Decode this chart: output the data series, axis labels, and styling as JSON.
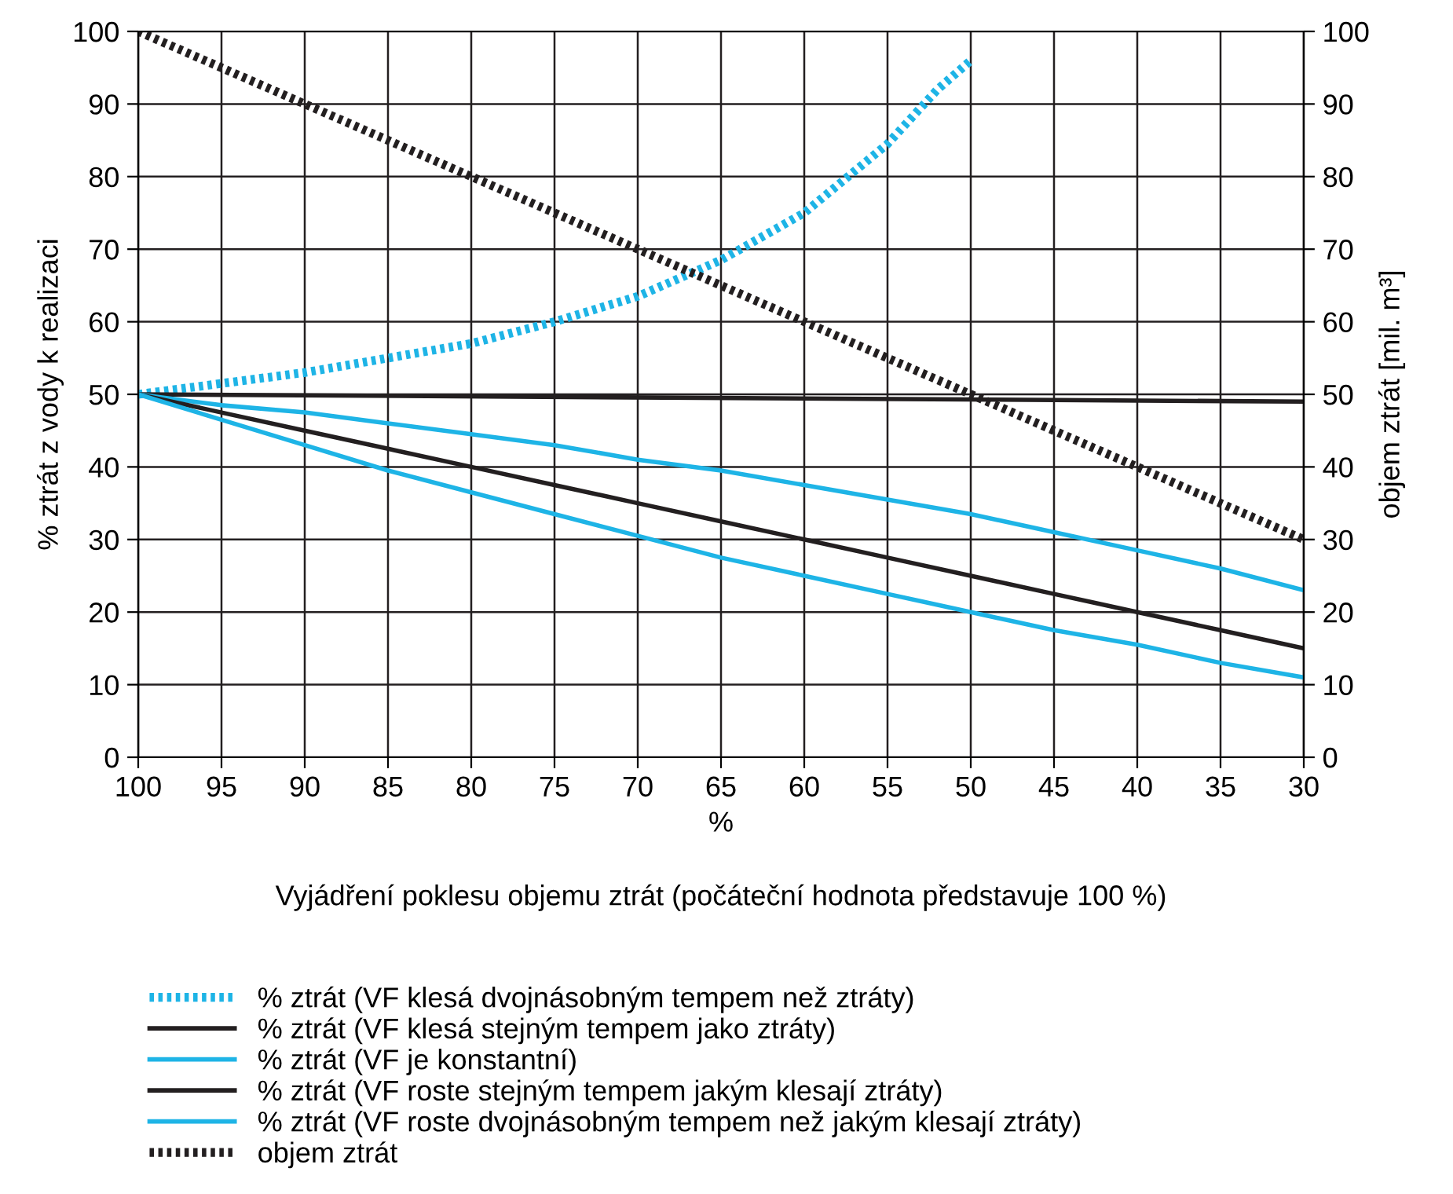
{
  "chart_data": {
    "type": "line",
    "x": [
      100,
      95,
      90,
      85,
      80,
      75,
      70,
      65,
      60,
      55,
      50,
      45,
      40,
      35,
      30
    ],
    "xlim": [
      100,
      30
    ],
    "xticks": [
      100,
      95,
      90,
      85,
      80,
      75,
      70,
      65,
      60,
      55,
      50,
      45,
      40,
      35,
      30
    ],
    "ylim": [
      0,
      100
    ],
    "yticks": [
      0,
      10,
      20,
      30,
      40,
      50,
      60,
      70,
      80,
      90,
      100
    ],
    "y2lim": [
      0,
      100
    ],
    "y2ticks": [
      0,
      10,
      20,
      30,
      40,
      50,
      60,
      70,
      80,
      90,
      100
    ],
    "xlabel": "%",
    "ylabel": "% ztrát z vody k realizaci",
    "y2label": "objem ztrát [mil. m³]",
    "annotations": [
      "Vyjádření poklesu objemu ztrát (počáteční hodnota představuje 100 %)"
    ],
    "grid": true,
    "legend": "bottom",
    "marker": "none",
    "series": [
      {
        "name": "% ztrát (VF klesá dvojnásobným tempem než ztráty)",
        "color": "#1eb4e6",
        "line_style": "dotted",
        "x": [
          100,
          95,
          90,
          85,
          80,
          75,
          70,
          65,
          60,
          55,
          52,
          50
        ],
        "values": [
          50,
          51.5,
          53,
          55,
          57,
          60,
          63.5,
          68.5,
          75,
          84.5,
          92,
          96
        ]
      },
      {
        "name": "% ztrát (VF klesá stejným tempem jako ztráty)",
        "color": "#231f20",
        "line_style": "solid",
        "x": [
          100,
          30
        ],
        "values": [
          50,
          49
        ]
      },
      {
        "name": "% ztrát (VF je konstantní)",
        "color": "#1eb4e6",
        "line_style": "solid",
        "values": [
          50,
          48.5,
          47.5,
          46,
          44.5,
          43,
          41,
          39.5,
          37.5,
          35.5,
          33.5,
          31,
          28.5,
          26,
          23
        ]
      },
      {
        "name": "% ztrát (VF roste stejným tempem jakým klesají ztráty)",
        "color": "#231f20",
        "line_style": "solid",
        "values": [
          50,
          47.5,
          45,
          42.5,
          40,
          37.5,
          35,
          32.5,
          30,
          27.5,
          25,
          22.5,
          20,
          17.5,
          15
        ]
      },
      {
        "name": "% ztrát (VF roste dvojnásobným tempem než jakým klesají ztráty)",
        "color": "#1eb4e6",
        "line_style": "solid",
        "values": [
          50,
          46.5,
          43,
          39.5,
          36.5,
          33.5,
          30.5,
          27.5,
          25,
          22.5,
          20,
          17.5,
          15.5,
          13,
          11
        ]
      },
      {
        "name": "objem ztrát",
        "color": "#231f20",
        "line_style": "dotted",
        "x": [
          100,
          30
        ],
        "values": [
          100,
          30
        ]
      }
    ]
  }
}
